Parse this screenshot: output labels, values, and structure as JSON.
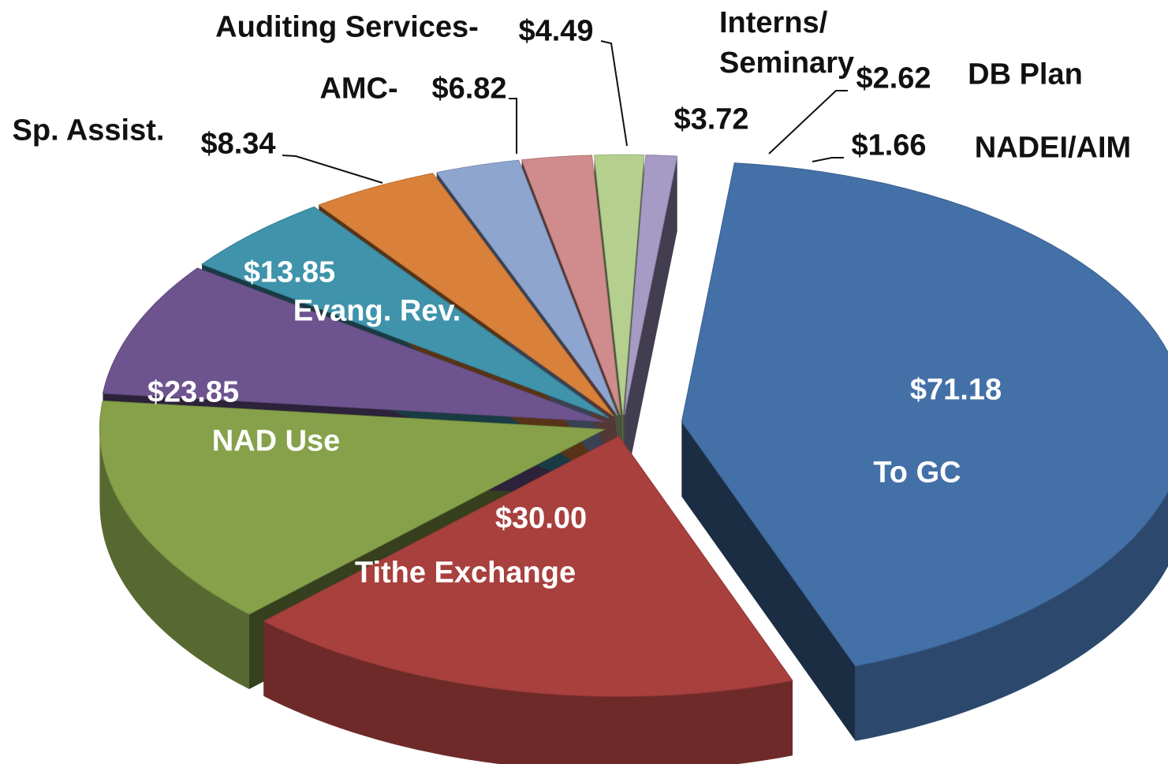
{
  "chart_data": {
    "type": "pie",
    "categories": [
      "To GC",
      "Tithe Exchange",
      "NAD Use",
      "Evang. Rev.",
      "Sp. Assist.",
      "AMC-",
      "Auditing Services-",
      "Interns/ Seminary",
      "DB Plan",
      "NADEI/AIM"
    ],
    "values": [
      71.18,
      30.0,
      23.85,
      13.85,
      8.34,
      6.82,
      4.49,
      3.72,
      2.62,
      1.66
    ],
    "value_labels": [
      "$71.18",
      "$30.00",
      "$23.85",
      "$13.85",
      "$8.34",
      "$6.82",
      "$4.49",
      "$3.72",
      "$2.62",
      "$1.66"
    ],
    "colors": [
      "#4470a8",
      "#a8403e",
      "#86a14a",
      "#6e548e",
      "#3f93ab",
      "#d9813a",
      "#8ea6cf",
      "#d08c8c",
      "#b5cf8f",
      "#a59bc5"
    ]
  }
}
